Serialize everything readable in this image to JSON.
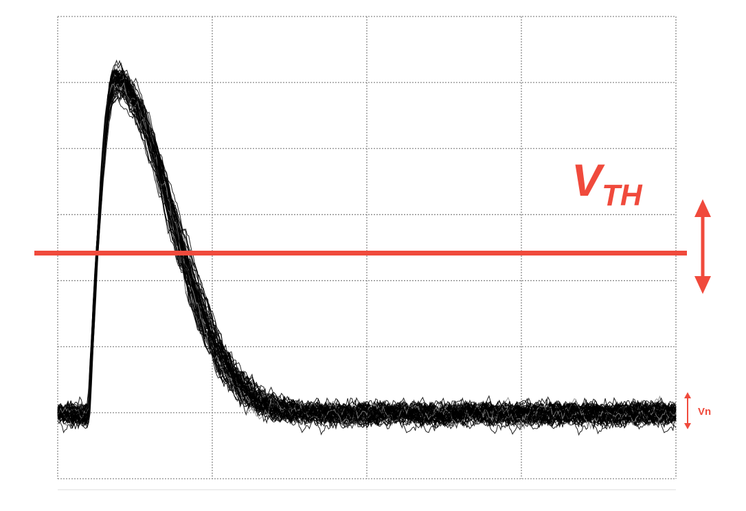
{
  "chart_data": {
    "type": "line",
    "title": "",
    "xlabel": "",
    "ylabel": "",
    "grid": true,
    "grid_divisions": {
      "x": 4,
      "y": 7
    },
    "xlim": [
      0,
      4
    ],
    "ylim": [
      -1,
      6
    ],
    "trace_count": 60,
    "trace_color": "#000000",
    "baseline": 0,
    "pulse": {
      "start_x": 0.2,
      "peak_x": 0.37,
      "peak_value": 5.1,
      "decay_constant": 0.36
    },
    "noise_amplitude": 0.35,
    "threshold": {
      "label_main": "V",
      "label_sub": "TH",
      "value": 2.5,
      "color": "#f04a3c",
      "adjustable": true
    },
    "noise_marker": {
      "label": "Vn",
      "color": "#f04a3c"
    }
  }
}
